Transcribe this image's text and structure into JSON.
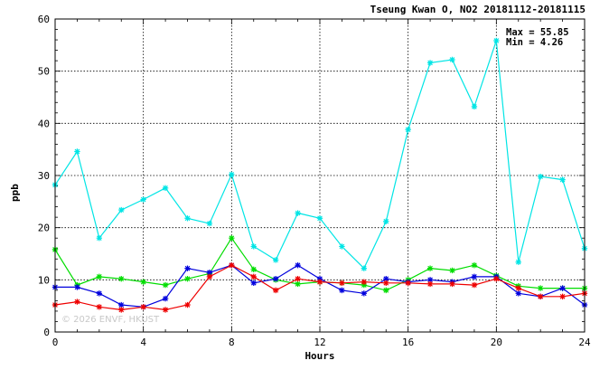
{
  "chart_data": {
    "type": "line",
    "title": "Tseung Kwan O, NO2 20181112-20181115",
    "xlabel": "Hours",
    "ylabel": "ppb",
    "xlim": [
      0,
      24
    ],
    "ylim": [
      0,
      60
    ],
    "x_ticks": [
      "0",
      "4",
      "8",
      "12",
      "16",
      "20",
      "24"
    ],
    "x_tick_values": [
      0,
      4,
      8,
      12,
      16,
      20,
      24
    ],
    "y_ticks": [
      "0",
      "10",
      "20",
      "30",
      "40",
      "50",
      "60"
    ],
    "y_tick_values": [
      0,
      10,
      20,
      30,
      40,
      50,
      60
    ],
    "grid": true,
    "stats": {
      "max": "Max = 55.85",
      "min": "Min =  4.26"
    },
    "watermark": "© 2026  ENVF, HKUST",
    "x": [
      0,
      1,
      2,
      3,
      4,
      5,
      6,
      7,
      8,
      9,
      10,
      11,
      12,
      13,
      14,
      15,
      16,
      17,
      18,
      19,
      20,
      21,
      22,
      23,
      24
    ],
    "series": [
      {
        "color": "#00e5e5",
        "values": [
          28.2,
          34.6,
          18.0,
          23.4,
          25.4,
          27.6,
          21.8,
          20.8,
          30.2,
          16.4,
          13.8,
          22.8,
          21.8,
          16.4,
          12.2,
          21.2,
          38.8,
          51.6,
          52.2,
          43.2,
          55.85,
          13.4,
          29.8,
          29.2,
          16.0
        ]
      },
      {
        "color": "#00dd00",
        "values": [
          15.8,
          9.0,
          10.6,
          10.2,
          9.6,
          9.0,
          10.2,
          11.2,
          18.0,
          12.0,
          10.0,
          9.2,
          9.6,
          9.4,
          9.0,
          8.0,
          10.0,
          12.2,
          11.8,
          12.8,
          10.8,
          8.8,
          8.4,
          8.4,
          8.4
        ]
      },
      {
        "color": "#0000dd",
        "values": [
          8.6,
          8.6,
          7.4,
          5.2,
          4.8,
          6.4,
          12.2,
          11.4,
          12.8,
          9.4,
          10.2,
          12.8,
          10.2,
          8.0,
          7.4,
          10.2,
          9.6,
          10.0,
          9.6,
          10.6,
          10.6,
          7.4,
          6.8,
          8.4,
          5.2
        ]
      },
      {
        "color": "#ee0000",
        "values": [
          5.2,
          5.8,
          4.8,
          4.26,
          4.8,
          4.26,
          5.2,
          10.6,
          12.8,
          10.6,
          8.0,
          10.2,
          9.6,
          9.4,
          9.6,
          9.4,
          9.4,
          9.2,
          9.2,
          9.0,
          10.2,
          8.4,
          6.8,
          6.8,
          7.4
        ]
      }
    ]
  }
}
